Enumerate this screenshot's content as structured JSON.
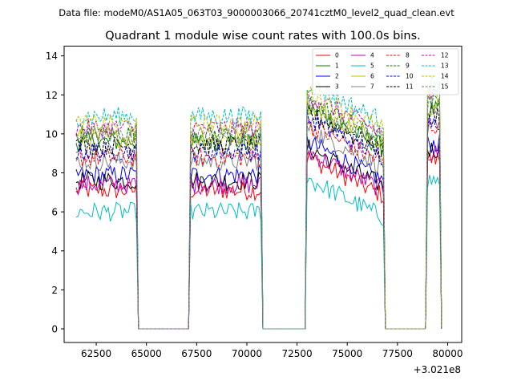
{
  "chart_data": {
    "type": "line",
    "suptitle": "Data file: modeM0/AS1A05_063T03_9000003066_20741cztM0_level2_quad_clean.evt",
    "title": "Quadrant 1 module wise count rates with 100.0s bins.",
    "xlabel": "",
    "ylabel": "",
    "x_offset_label": "+3.021e8",
    "x_offset": 302100000,
    "xlim": [
      60900,
      80700
    ],
    "ylim": [
      -0.7,
      14.5
    ],
    "x_ticks": [
      62500,
      65000,
      67500,
      70000,
      72500,
      75000,
      77500,
      80000
    ],
    "x_tick_labels": [
      "62500",
      "65000",
      "67500",
      "70000",
      "72500",
      "75000",
      "77500",
      "80000"
    ],
    "y_ticks": [
      0,
      2,
      4,
      6,
      8,
      10,
      12,
      14
    ],
    "y_tick_labels": [
      "0",
      "2",
      "4",
      "6",
      "8",
      "10",
      "12",
      "14"
    ],
    "bin_seconds": 100,
    "on_segments": [
      [
        61500,
        64500
      ],
      [
        67150,
        70750
      ],
      [
        73000,
        76850
      ],
      [
        79000,
        79650
      ]
    ],
    "off_level": 0,
    "legend_position": "top-right",
    "series": [
      {
        "name": "0",
        "level": 7.1,
        "color": "#ff0000",
        "dash": "solid"
      },
      {
        "name": "1",
        "level": 9.6,
        "color": "#008000",
        "dash": "solid"
      },
      {
        "name": "2",
        "level": 7.9,
        "color": "#0000ff",
        "dash": "solid"
      },
      {
        "name": "3",
        "level": 7.6,
        "color": "#000000",
        "dash": "solid"
      },
      {
        "name": "4",
        "level": 7.4,
        "color": "#bf00bf",
        "dash": "solid"
      },
      {
        "name": "5",
        "level": 6.0,
        "color": "#00bfbf",
        "dash": "solid"
      },
      {
        "name": "6",
        "level": 9.8,
        "color": "#bfbf00",
        "dash": "solid"
      },
      {
        "name": "7",
        "level": 8.6,
        "color": "#808080",
        "dash": "solid"
      },
      {
        "name": "8",
        "level": 8.8,
        "color": "#ff0000",
        "dash": "dashed"
      },
      {
        "name": "9",
        "level": 10.0,
        "color": "#008000",
        "dash": "dashed"
      },
      {
        "name": "10",
        "level": 9.1,
        "color": "#0000ff",
        "dash": "dashed"
      },
      {
        "name": "11",
        "level": 9.4,
        "color": "#000000",
        "dash": "dashed"
      },
      {
        "name": "12",
        "level": 10.3,
        "color": "#bf00bf",
        "dash": "dashed"
      },
      {
        "name": "13",
        "level": 10.9,
        "color": "#00bfbf",
        "dash": "dashed"
      },
      {
        "name": "14",
        "level": 10.5,
        "color": "#bfbf00",
        "dash": "dashed"
      },
      {
        "name": "15",
        "level": 9.9,
        "color": "#808080",
        "dash": "dashed"
      }
    ]
  }
}
